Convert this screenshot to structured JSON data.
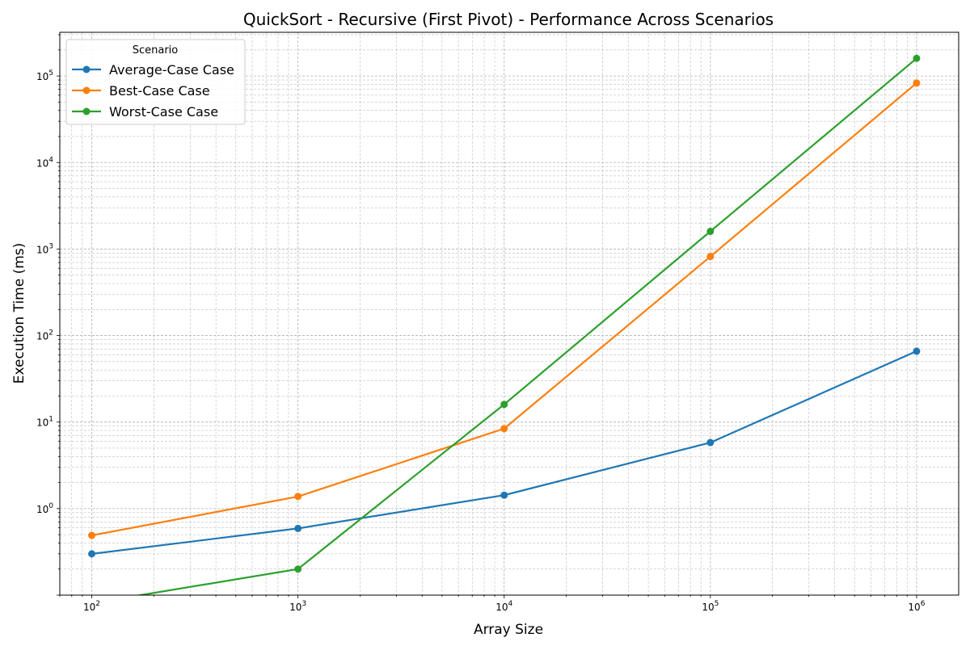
{
  "chart_data": {
    "type": "line",
    "title": "QuickSort - Recursive (First Pivot) - Performance Across Scenarios",
    "xlabel": "Array Size",
    "ylabel": "Execution Time (ms)",
    "xscale": "log",
    "yscale": "log",
    "xlim": [
      70,
      1600000
    ],
    "ylim": [
      0.1,
      320000
    ],
    "grid": "on (major and minor, dashed)",
    "legend": {
      "title": "Scenario",
      "placement": "top-left"
    },
    "x": [
      100,
      1000,
      10000,
      100000,
      1000000
    ],
    "x_ticks": [
      {
        "base": "10",
        "exp": "2",
        "value": 100
      },
      {
        "base": "10",
        "exp": "3",
        "value": 1000
      },
      {
        "base": "10",
        "exp": "4",
        "value": 10000
      },
      {
        "base": "10",
        "exp": "5",
        "value": 100000
      },
      {
        "base": "10",
        "exp": "6",
        "value": 1000000
      }
    ],
    "y_ticks": [
      {
        "base": "10",
        "exp": "0",
        "value": 1
      },
      {
        "base": "10",
        "exp": "1",
        "value": 10
      },
      {
        "base": "10",
        "exp": "2",
        "value": 100
      },
      {
        "base": "10",
        "exp": "3",
        "value": 1000
      },
      {
        "base": "10",
        "exp": "4",
        "value": 10000
      },
      {
        "base": "10",
        "exp": "5",
        "value": 100000
      }
    ],
    "series": [
      {
        "name": "Average-Case Case",
        "color": "#1f77b4",
        "values": [
          0.3,
          0.59,
          1.43,
          5.8,
          66
        ]
      },
      {
        "name": "Best-Case Case",
        "color": "#ff7f0e",
        "values": [
          0.49,
          1.38,
          8.4,
          820,
          83000
        ]
      },
      {
        "name": "Worst-Case Case",
        "color": "#2ca02c",
        "values": [
          0.0,
          0.2,
          16,
          1600,
          160000
        ]
      }
    ]
  }
}
